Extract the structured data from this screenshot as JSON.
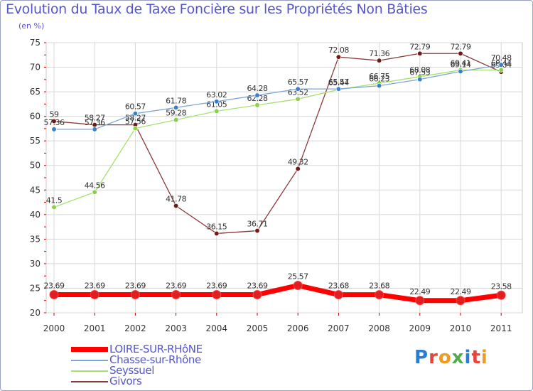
{
  "title": "Evolution du Taux de Taxe Foncière sur les Propriétés Non Bâties",
  "subtitle": "(en %)",
  "logo": {
    "text": "Proxiti",
    "colors": [
      "#2a7fd4",
      "#e8423b",
      "#f29a1b",
      "#4cae4c",
      "#2a7fd4",
      "#e8423b",
      "#f29a1b"
    ]
  },
  "chart_data": {
    "type": "line",
    "title": "Evolution du Taux de Taxe Foncière sur les Propriétés Non Bâties",
    "ylabel": "(en %)",
    "x": [
      "2000",
      "2001",
      "2002",
      "2003",
      "2004",
      "2005",
      "2006",
      "2007",
      "2008",
      "2009",
      "2010",
      "2011"
    ],
    "ylim": [
      20,
      75
    ],
    "yticks": [
      20,
      25,
      30,
      35,
      40,
      45,
      50,
      55,
      60,
      65,
      70,
      75
    ],
    "grid": true,
    "legend_position": "bottom-left",
    "series": [
      {
        "name": "LOIRE-SUR-RHôNE",
        "color": "#ff0000",
        "marker": "#e02020",
        "width": 7,
        "values": [
          23.69,
          23.69,
          23.69,
          23.69,
          23.69,
          23.69,
          25.57,
          23.68,
          23.68,
          22.49,
          22.49,
          23.58
        ],
        "labels": [
          "23.69",
          "23.69",
          "23.69",
          "23.69",
          "23.69",
          "23.69",
          "25.57",
          "23.68",
          "23.68",
          "22.49",
          "22.49",
          "23.58"
        ]
      },
      {
        "name": "Chasse-sur-Rhône",
        "color": "#7aa6d8",
        "marker": "#3a80c8",
        "width": 1.3,
        "values": [
          57.36,
          57.36,
          60.57,
          61.78,
          63.02,
          64.28,
          65.57,
          65.57,
          66.23,
          67.53,
          69.14,
          70.48
        ],
        "labels": [
          "57.36",
          "57.36",
          "60.57",
          "61.78",
          "63.02",
          "64.28",
          "65.57",
          "65.57",
          "66.23",
          "67.53",
          "69.14",
          "70.48"
        ]
      },
      {
        "name": "Seyssuel",
        "color": "#a8e070",
        "marker": "#88d048",
        "width": 1.3,
        "values": [
          41.5,
          44.56,
          57.56,
          59.28,
          61.05,
          62.28,
          63.52,
          65.44,
          66.75,
          68.08,
          69.41,
          69.44
        ],
        "labels": [
          "41.5",
          "44.56",
          "57.56",
          "59.28",
          "61.05",
          "62.28",
          "63.52",
          "65.44",
          "66.75",
          "68.08",
          "69.41",
          "69.44"
        ]
      },
      {
        "name": "Givors",
        "color": "#8b3a3a",
        "marker": "#701818",
        "width": 1.3,
        "values": [
          59,
          58.27,
          58.27,
          41.78,
          36.15,
          36.71,
          49.32,
          72.08,
          71.36,
          72.79,
          72.79,
          69.04
        ],
        "labels": [
          "59",
          "58.27",
          "58.27",
          "41.78",
          "36.15",
          "36.71",
          "49.32",
          "72.08",
          "71.36",
          "72.79",
          "72.79",
          "69.04"
        ]
      }
    ]
  }
}
